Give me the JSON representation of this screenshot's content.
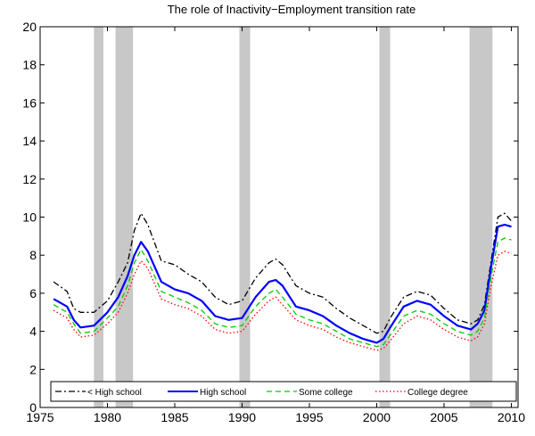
{
  "chart_data": {
    "type": "line",
    "title": "The role of Inactivity−Employment transition rate",
    "xlabel": "",
    "ylabel": "",
    "xlim": [
      1975,
      2010.5
    ],
    "ylim": [
      0,
      20
    ],
    "x_ticks": [
      1975,
      1980,
      1985,
      1990,
      1995,
      2000,
      2005,
      2010
    ],
    "y_ticks": [
      0,
      2,
      4,
      6,
      8,
      10,
      12,
      14,
      16,
      18,
      20
    ],
    "grid": false,
    "legend_position": "bottom",
    "recession_shading": [
      {
        "start": 1979.0,
        "end": 1979.7
      },
      {
        "start": 1980.6,
        "end": 1981.9
      },
      {
        "start": 1989.8,
        "end": 1990.6
      },
      {
        "start": 2000.2,
        "end": 2001.0
      },
      {
        "start": 2006.9,
        "end": 2008.6
      }
    ],
    "recession_color": "#c8c8c8",
    "x": [
      1976.0,
      1977.0,
      1977.5,
      1978.0,
      1979.0,
      1980.0,
      1980.8,
      1981.5,
      1982.0,
      1982.5,
      1983.0,
      1984.0,
      1985.0,
      1986.0,
      1987.0,
      1988.0,
      1989.0,
      1990.0,
      1991.0,
      1992.0,
      1992.5,
      1993.0,
      1994.0,
      1995.0,
      1996.0,
      1997.0,
      1998.0,
      1999.0,
      2000.0,
      2000.5,
      2001.0,
      2002.0,
      2003.0,
      2004.0,
      2005.0,
      2006.0,
      2007.0,
      2007.5,
      2008.0,
      2008.5,
      2009.0,
      2009.5,
      2010.0
    ],
    "series": [
      {
        "name": "< High school",
        "color": "#000000",
        "dash": "dashdot",
        "values": [
          6.6,
          6.1,
          5.2,
          5.0,
          5.0,
          5.6,
          6.6,
          7.6,
          9.3,
          10.2,
          9.6,
          7.7,
          7.5,
          7.0,
          6.6,
          5.8,
          5.4,
          5.6,
          6.8,
          7.6,
          7.8,
          7.5,
          6.4,
          6.0,
          5.8,
          5.2,
          4.7,
          4.3,
          3.9,
          4.0,
          4.7,
          5.8,
          6.1,
          5.9,
          5.2,
          4.6,
          4.4,
          4.6,
          5.4,
          7.7,
          10.0,
          10.2,
          9.8
        ]
      },
      {
        "name": "High school",
        "color": "#0000ff",
        "dash": "solid",
        "values": [
          5.7,
          5.3,
          4.6,
          4.2,
          4.3,
          5.0,
          5.8,
          6.9,
          8.0,
          8.7,
          8.2,
          6.6,
          6.2,
          6.0,
          5.6,
          4.8,
          4.6,
          4.7,
          5.8,
          6.6,
          6.7,
          6.4,
          5.3,
          5.1,
          4.8,
          4.3,
          3.9,
          3.6,
          3.4,
          3.6,
          4.2,
          5.3,
          5.6,
          5.4,
          4.8,
          4.3,
          4.1,
          4.4,
          5.1,
          7.4,
          9.5,
          9.6,
          9.5
        ]
      },
      {
        "name": "Some college",
        "color": "#00cc00",
        "dash": "dashed",
        "values": [
          5.4,
          5.0,
          4.4,
          3.9,
          4.0,
          4.7,
          5.3,
          6.4,
          7.6,
          8.3,
          7.7,
          6.1,
          5.8,
          5.5,
          5.1,
          4.4,
          4.2,
          4.3,
          5.3,
          6.0,
          6.2,
          5.8,
          4.9,
          4.6,
          4.4,
          4.0,
          3.6,
          3.4,
          3.2,
          3.3,
          3.8,
          4.8,
          5.1,
          4.9,
          4.4,
          4.0,
          3.8,
          4.0,
          4.7,
          6.9,
          8.7,
          8.9,
          8.8
        ]
      },
      {
        "name": "College degree",
        "color": "#ff0000",
        "dash": "dotted",
        "values": [
          5.1,
          4.7,
          4.1,
          3.7,
          3.8,
          4.4,
          5.0,
          6.0,
          7.0,
          7.7,
          7.3,
          5.7,
          5.4,
          5.2,
          4.8,
          4.1,
          3.9,
          4.0,
          4.9,
          5.6,
          5.8,
          5.4,
          4.6,
          4.3,
          4.1,
          3.7,
          3.4,
          3.2,
          3.0,
          3.1,
          3.5,
          4.4,
          4.8,
          4.6,
          4.1,
          3.7,
          3.5,
          3.7,
          4.4,
          6.4,
          8.0,
          8.2,
          8.1
        ]
      }
    ]
  }
}
